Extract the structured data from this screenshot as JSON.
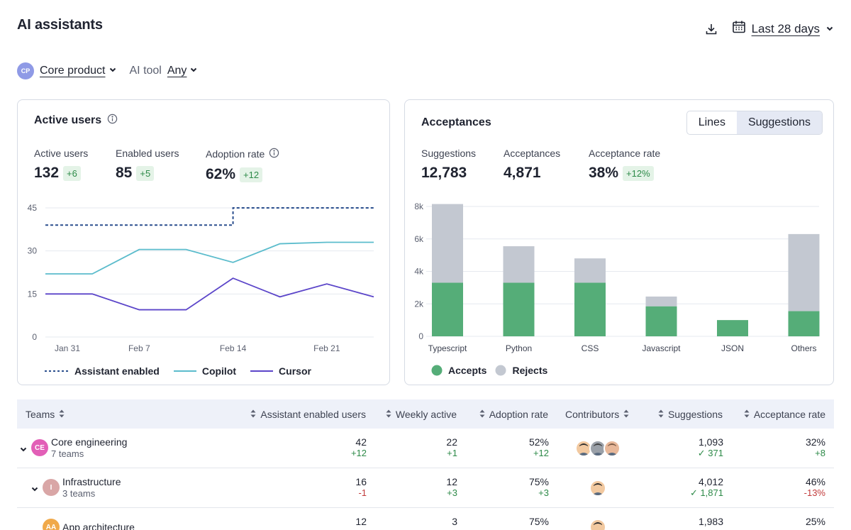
{
  "header": {
    "title": "AI assistants",
    "date_range": "Last 28 days",
    "download_icon": "download-icon",
    "calendar_icon": "calendar-icon"
  },
  "filters": {
    "project_avatar": "CP",
    "project": "Core product",
    "ai_tool_label": "AI tool",
    "ai_tool_value": "Any"
  },
  "active_users_card": {
    "title": "Active users",
    "stats": [
      {
        "label": "Active users",
        "value": "132",
        "delta": "+6"
      },
      {
        "label": "Enabled users",
        "value": "85",
        "delta": "+5"
      },
      {
        "label": "Adoption rate",
        "value": "62%",
        "delta": "+12"
      }
    ],
    "legend": [
      "Assistant enabled",
      "Copilot",
      "Cursor"
    ]
  },
  "acceptances_card": {
    "title": "Acceptances",
    "toggle": [
      "Lines",
      "Suggestions"
    ],
    "toggle_active": "Suggestions",
    "stats": [
      {
        "label": "Suggestions",
        "value": "12,783",
        "delta": ""
      },
      {
        "label": "Acceptances",
        "value": "4,871",
        "delta": ""
      },
      {
        "label": "Acceptance rate",
        "value": "38%",
        "delta": "+12%"
      }
    ],
    "legend": [
      "Accepts",
      "Rejects"
    ]
  },
  "chart_data": [
    {
      "type": "line",
      "x_tick_labels": [
        "Jan 31",
        "Feb 7",
        "Feb 14",
        "Feb 21"
      ],
      "x": [
        "Jan 31",
        "Feb 3",
        "Feb 7",
        "Feb 11",
        "Feb 14",
        "Feb 17",
        "Feb 21",
        "Feb 24"
      ],
      "ylim": [
        0,
        45
      ],
      "y_ticks": [
        0,
        15,
        30,
        45
      ],
      "grid": true,
      "series": [
        {
          "name": "Assistant enabled",
          "color": "#2b4f8e",
          "style": "dashed",
          "step": true,
          "values": [
            39,
            39,
            39,
            39,
            45,
            45,
            45,
            45
          ]
        },
        {
          "name": "Copilot",
          "color": "#5bbccc",
          "style": "solid",
          "values": [
            22,
            22,
            30.5,
            30.5,
            26,
            32.5,
            33,
            33
          ]
        },
        {
          "name": "Cursor",
          "color": "#5b45c9",
          "style": "solid",
          "values": [
            15,
            15,
            9.5,
            9.5,
            20.5,
            14,
            18.5,
            14
          ]
        }
      ],
      "legend_position": "bottom-left"
    },
    {
      "type": "bar",
      "stacked": true,
      "categories": [
        "Typescript",
        "Python",
        "CSS",
        "Javascript",
        "JSON",
        "Others"
      ],
      "y_tick_labels": [
        "0",
        "2k",
        "4k",
        "6k",
        "8k"
      ],
      "ylim": [
        0,
        8000
      ],
      "grid": true,
      "series": [
        {
          "name": "Accepts",
          "color": "#55ad78",
          "values": [
            3300,
            3300,
            3300,
            1850,
            1000,
            1550
          ]
        },
        {
          "name": "Rejects",
          "color": "#c3c8d1",
          "values": [
            4850,
            2250,
            1500,
            600,
            0,
            4750
          ]
        }
      ],
      "legend_position": "bottom-left"
    }
  ],
  "table": {
    "columns": [
      "Teams",
      "Assistant enabled users",
      "Weekly active",
      "Adoption rate",
      "Contributors",
      "Suggestions",
      "Acceptance rate"
    ],
    "rows": [
      {
        "name": "Core engineering",
        "sub": "7 teams",
        "avatar": "CE",
        "avatar_color": "#e25fb7",
        "level": 0,
        "enabled": "42",
        "enabled_delta": "+12",
        "weekly": "22",
        "weekly_delta": "+1",
        "adoption": "52%",
        "adoption_delta": "+12",
        "contributors": 3,
        "suggestions": "1,093",
        "suggestions_accepted": "371",
        "acceptance": "32%",
        "acceptance_delta": "+8"
      },
      {
        "name": "Infrastructure",
        "sub": "3 teams",
        "avatar": "I",
        "avatar_color": "#d9a6a6",
        "level": 1,
        "enabled": "16",
        "enabled_delta": "-1",
        "weekly": "12",
        "weekly_delta": "+3",
        "adoption": "75%",
        "adoption_delta": "+3",
        "contributors": 1,
        "suggestions": "4,012",
        "suggestions_accepted": "1,871",
        "acceptance": "46%",
        "acceptance_delta": "-13%"
      },
      {
        "name": "App architecture",
        "sub": "",
        "avatar": "AA",
        "avatar_color": "#f0a94a",
        "level": 1,
        "enabled": "12",
        "enabled_delta": "",
        "weekly": "3",
        "weekly_delta": "",
        "adoption": "75%",
        "adoption_delta": "",
        "contributors": 1,
        "suggestions": "1,983",
        "suggestions_accepted": "",
        "acceptance": "25%",
        "acceptance_delta": ""
      }
    ]
  }
}
